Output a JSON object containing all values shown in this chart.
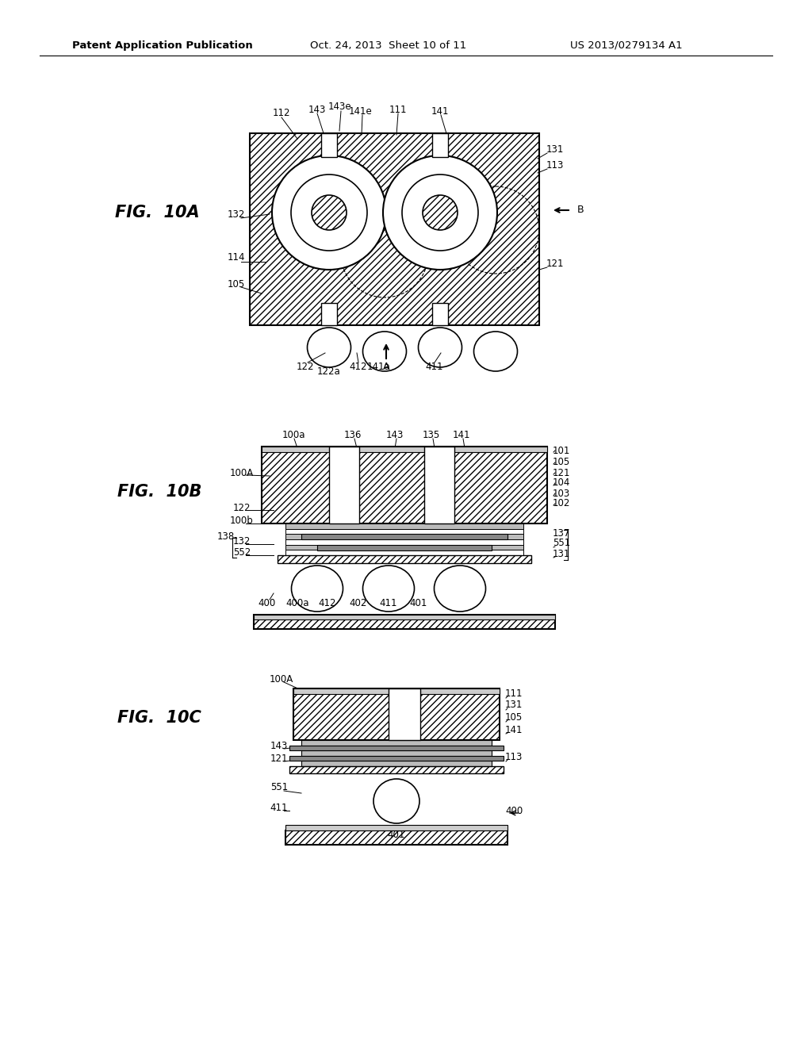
{
  "header_left": "Patent Application Publication",
  "header_center": "Oct. 24, 2013  Sheet 10 of 11",
  "header_right": "US 2013/0279134 A1",
  "fig10a_label": "FIG.  10A",
  "fig10b_label": "FIG.  10B",
  "fig10c_label": "FIG.  10C",
  "bg_color": "#ffffff"
}
